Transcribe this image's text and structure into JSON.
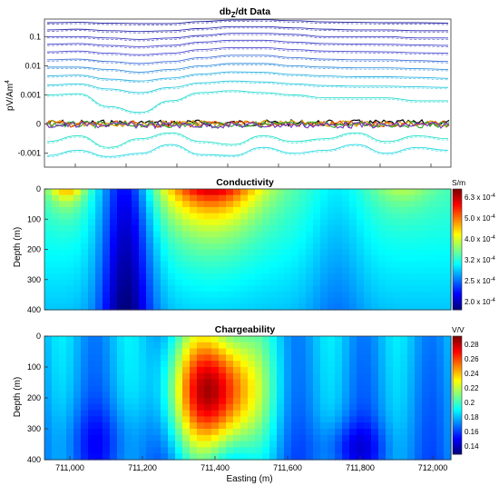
{
  "chart_data": [
    {
      "type": "line",
      "title": "db",
      "title_sub": "Z",
      "title_rest": "/dt Data",
      "ylabel": "pV/Am",
      "ylabel_sup": "4",
      "y_scale": "symlog",
      "y_ticks": [
        "0.1",
        "0.01",
        "0.001",
        "0",
        "-0.001"
      ],
      "y_tick_values": [
        0.1,
        0.01,
        0.001,
        0,
        -0.001
      ],
      "series": [
        {
          "color": "#1a1aa0",
          "values": [
            0.3,
            0.31,
            0.29,
            0.28,
            0.28,
            0.33,
            0.37,
            0.38,
            0.35,
            0.32,
            0.31,
            0.3,
            0.3,
            0.29
          ]
        },
        {
          "color": "#2a2ab0",
          "values": [
            0.17,
            0.18,
            0.16,
            0.15,
            0.16,
            0.19,
            0.22,
            0.22,
            0.2,
            0.18,
            0.17,
            0.17,
            0.16,
            0.16
          ]
        },
        {
          "color": "#3535c0",
          "values": [
            0.1,
            0.1,
            0.09,
            0.08,
            0.09,
            0.11,
            0.13,
            0.13,
            0.12,
            0.1,
            0.1,
            0.1,
            0.09,
            0.09
          ]
        },
        {
          "color": "#4040cc",
          "values": [
            0.055,
            0.058,
            0.05,
            0.045,
            0.05,
            0.065,
            0.075,
            0.075,
            0.065,
            0.058,
            0.056,
            0.055,
            0.052,
            0.05
          ]
        },
        {
          "color": "#4b4bd4",
          "values": [
            0.03,
            0.032,
            0.027,
            0.024,
            0.027,
            0.036,
            0.042,
            0.042,
            0.036,
            0.032,
            0.031,
            0.03,
            0.028,
            0.027
          ]
        },
        {
          "color": "#3f70d8",
          "values": [
            0.016,
            0.017,
            0.014,
            0.012,
            0.014,
            0.019,
            0.023,
            0.023,
            0.019,
            0.017,
            0.016,
            0.016,
            0.015,
            0.014
          ]
        },
        {
          "color": "#3490dc",
          "values": [
            0.009,
            0.009,
            0.0075,
            0.006,
            0.0075,
            0.01,
            0.012,
            0.012,
            0.01,
            0.009,
            0.0085,
            0.0085,
            0.008,
            0.0075
          ]
        },
        {
          "color": "#2ab0e0",
          "values": [
            0.0045,
            0.0048,
            0.0035,
            0.003,
            0.0038,
            0.0052,
            0.0062,
            0.006,
            0.005,
            0.0045,
            0.0042,
            0.0042,
            0.004,
            0.0037
          ]
        },
        {
          "color": "#22c8dc",
          "values": [
            0.0022,
            0.0024,
            0.0016,
            0.0012,
            0.0018,
            0.0026,
            0.003,
            0.0028,
            0.0024,
            0.0021,
            0.002,
            0.002,
            0.0019,
            0.0018
          ]
        },
        {
          "color": "#1fd8d0",
          "values": [
            0.001,
            0.0011,
            0.0006,
            0.0004,
            0.0008,
            0.0012,
            0.0014,
            0.0012,
            0.001,
            0.0009,
            0.0009,
            0.0009,
            0.0008,
            0.0008
          ]
        },
        {
          "color": "#1ee0c8",
          "values": [
            -0.0006,
            -0.0004,
            -0.0008,
            -0.0005,
            -0.0003,
            -0.0006,
            -0.0007,
            -0.0004,
            -0.0006,
            -0.0005,
            -0.0003,
            -0.0006,
            -0.0004,
            -0.0005
          ]
        },
        {
          "color": "#22d8e0",
          "values": [
            -0.0012,
            -0.0009,
            -0.0013,
            -0.001,
            -0.0007,
            -0.0011,
            -0.0012,
            -0.0008,
            -0.001,
            -0.0009,
            -0.0007,
            -0.001,
            -0.0008,
            -0.0009
          ]
        }
      ],
      "noise_colors": [
        "#000000",
        "#d9a400",
        "#e34a00",
        "#3bb03b",
        "#7a3ac0"
      ]
    },
    {
      "type": "heatmap",
      "title": "Conductivity",
      "ylabel": "Depth (m)",
      "y_ticks": [
        "0",
        "100",
        "200",
        "300",
        "400"
      ],
      "y_range": [
        0,
        400
      ],
      "colorbar_unit": "S/m",
      "colorbar_labels": [
        "6.3 x 10",
        "5.0 x 10",
        "4.0 x 10",
        "3.2 x 10",
        "2.5 x 10",
        "2.0 x 10"
      ],
      "colorbar_exp": "-4",
      "colorbar_values": [
        0.00063,
        0.0005,
        0.0004,
        0.00032,
        0.00025,
        0.0002
      ]
    },
    {
      "type": "heatmap",
      "title": "Chargeability",
      "ylabel": "Depth (m)",
      "xlabel": "Easting (m)",
      "y_ticks": [
        "0",
        "100",
        "200",
        "300",
        "400"
      ],
      "y_range": [
        0,
        400
      ],
      "x_ticks": [
        "711,000",
        "711,200",
        "711,400",
        "711,600",
        "711,800",
        "712,000"
      ],
      "x_tick_values": [
        711000,
        711200,
        711400,
        711600,
        711800,
        712000
      ],
      "x_range": [
        710930,
        712050
      ],
      "colorbar_unit": "V/V",
      "colorbar_labels": [
        "0.28",
        "0.26",
        "0.24",
        "0.22",
        "0.2",
        "0.18",
        "0.16",
        "0.14"
      ],
      "colorbar_values": [
        0.28,
        0.26,
        0.24,
        0.22,
        0.2,
        0.18,
        0.16,
        0.14
      ]
    }
  ]
}
